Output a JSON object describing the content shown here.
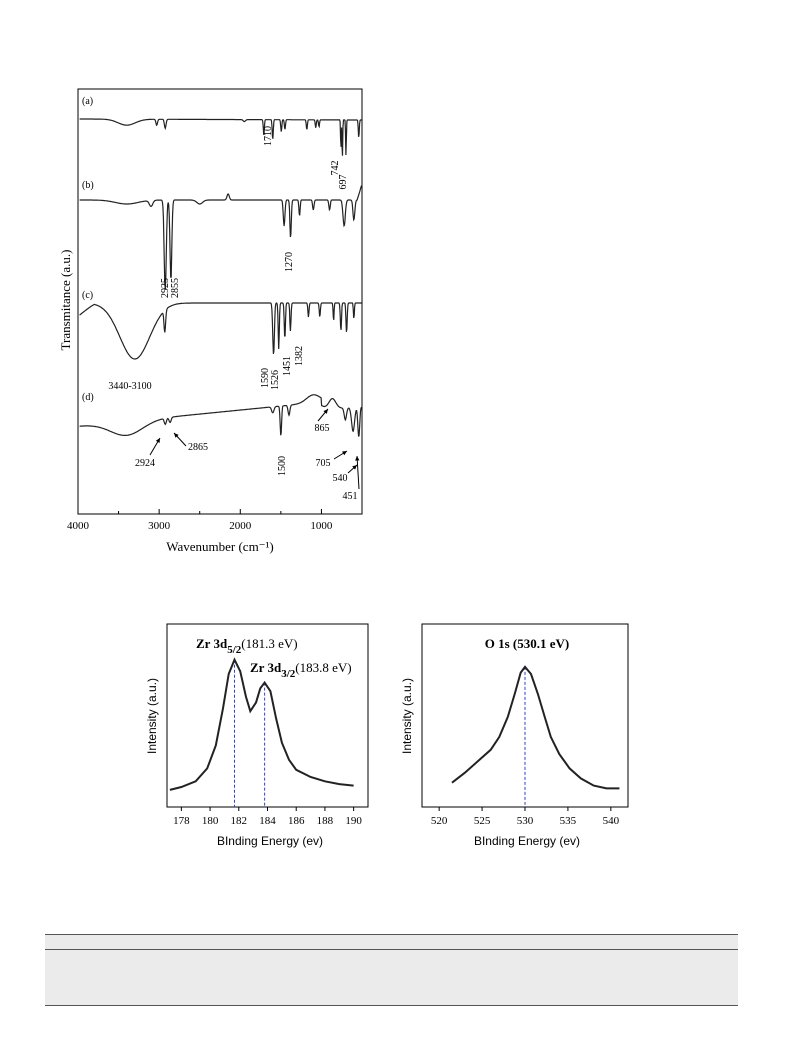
{
  "chart_data": [
    {
      "type": "line",
      "xlabel": "Wavenumber (cm⁻¹)",
      "ylabel": "Transmitance (a.u.)",
      "xlim": [
        4000,
        500
      ],
      "x_ticks": [
        4000,
        3000,
        2000,
        1000
      ],
      "grid": false,
      "series": [
        {
          "name": "(a)",
          "peaks": [
            {
              "x": 1710,
              "label": "1710"
            },
            {
              "x": 742,
              "label": "742"
            },
            {
              "x": 697,
              "label": "697"
            }
          ]
        },
        {
          "name": "(b)",
          "peaks": [
            {
              "x": 2925,
              "label": "2925"
            },
            {
              "x": 2855,
              "label": "2855"
            },
            {
              "x": 1270,
              "label": "1270"
            }
          ]
        },
        {
          "name": "(c)",
          "peaks": [
            {
              "x": 3270,
              "label": "3440-3100"
            },
            {
              "x": 1590,
              "label": "1590"
            },
            {
              "x": 1526,
              "label": "1526"
            },
            {
              "x": 1451,
              "label": "1451"
            },
            {
              "x": 1382,
              "label": "1382"
            }
          ]
        },
        {
          "name": "(d)",
          "peaks": [
            {
              "x": 2924,
              "label": "2924"
            },
            {
              "x": 2865,
              "label": "2865"
            },
            {
              "x": 1500,
              "label": "1500"
            },
            {
              "x": 865,
              "label": "865"
            },
            {
              "x": 705,
              "label": "705"
            },
            {
              "x": 540,
              "label": "540"
            },
            {
              "x": 451,
              "label": "451"
            }
          ]
        }
      ]
    },
    {
      "type": "line",
      "xlabel": "BInding Energy (ev)",
      "ylabel": "Intensity (a.u.)",
      "xlim": [
        177,
        191
      ],
      "x_ticks": [
        178,
        180,
        182,
        184,
        186,
        188,
        190
      ],
      "grid": false,
      "series": [
        {
          "x": [
            177.2,
            178,
            179,
            179.8,
            180.4,
            180.9,
            181.3,
            181.7,
            182.1,
            182.5,
            182.8,
            183.2,
            183.5,
            183.8,
            184.2,
            184.6,
            185,
            185.5,
            186,
            187,
            188,
            189,
            190
          ],
          "y": [
            0.05,
            0.07,
            0.11,
            0.2,
            0.36,
            0.62,
            0.86,
            0.96,
            0.88,
            0.7,
            0.6,
            0.66,
            0.76,
            0.8,
            0.74,
            0.55,
            0.38,
            0.26,
            0.19,
            0.14,
            0.11,
            0.09,
            0.08
          ]
        }
      ],
      "annotations": [
        {
          "x": 181.7,
          "main": "Zr 3d",
          "sub": "5/2",
          "value": "(181.3 eV)"
        },
        {
          "x": 183.8,
          "main": "Zr 3d",
          "sub": "3/2",
          "value": "(183.8 eV)"
        }
      ]
    },
    {
      "type": "line",
      "xlabel": "BInding Energy (ev)",
      "ylabel": "Intensity (a.u.)",
      "xlim": [
        518,
        542
      ],
      "x_ticks": [
        520,
        525,
        530,
        535,
        540
      ],
      "grid": false,
      "series": [
        {
          "x": [
            521.5,
            523,
            524.5,
            526,
            527,
            528,
            528.8,
            529.5,
            530,
            530.7,
            531.5,
            532.3,
            533,
            534,
            535.2,
            536.5,
            538,
            539.5,
            541
          ],
          "y": [
            0.1,
            0.17,
            0.25,
            0.33,
            0.42,
            0.56,
            0.72,
            0.87,
            0.91,
            0.86,
            0.72,
            0.56,
            0.42,
            0.3,
            0.2,
            0.13,
            0.08,
            0.06,
            0.06
          ]
        }
      ],
      "annotations": [
        {
          "x": 530,
          "value": "O 1s (530.1 eV)"
        }
      ]
    }
  ]
}
